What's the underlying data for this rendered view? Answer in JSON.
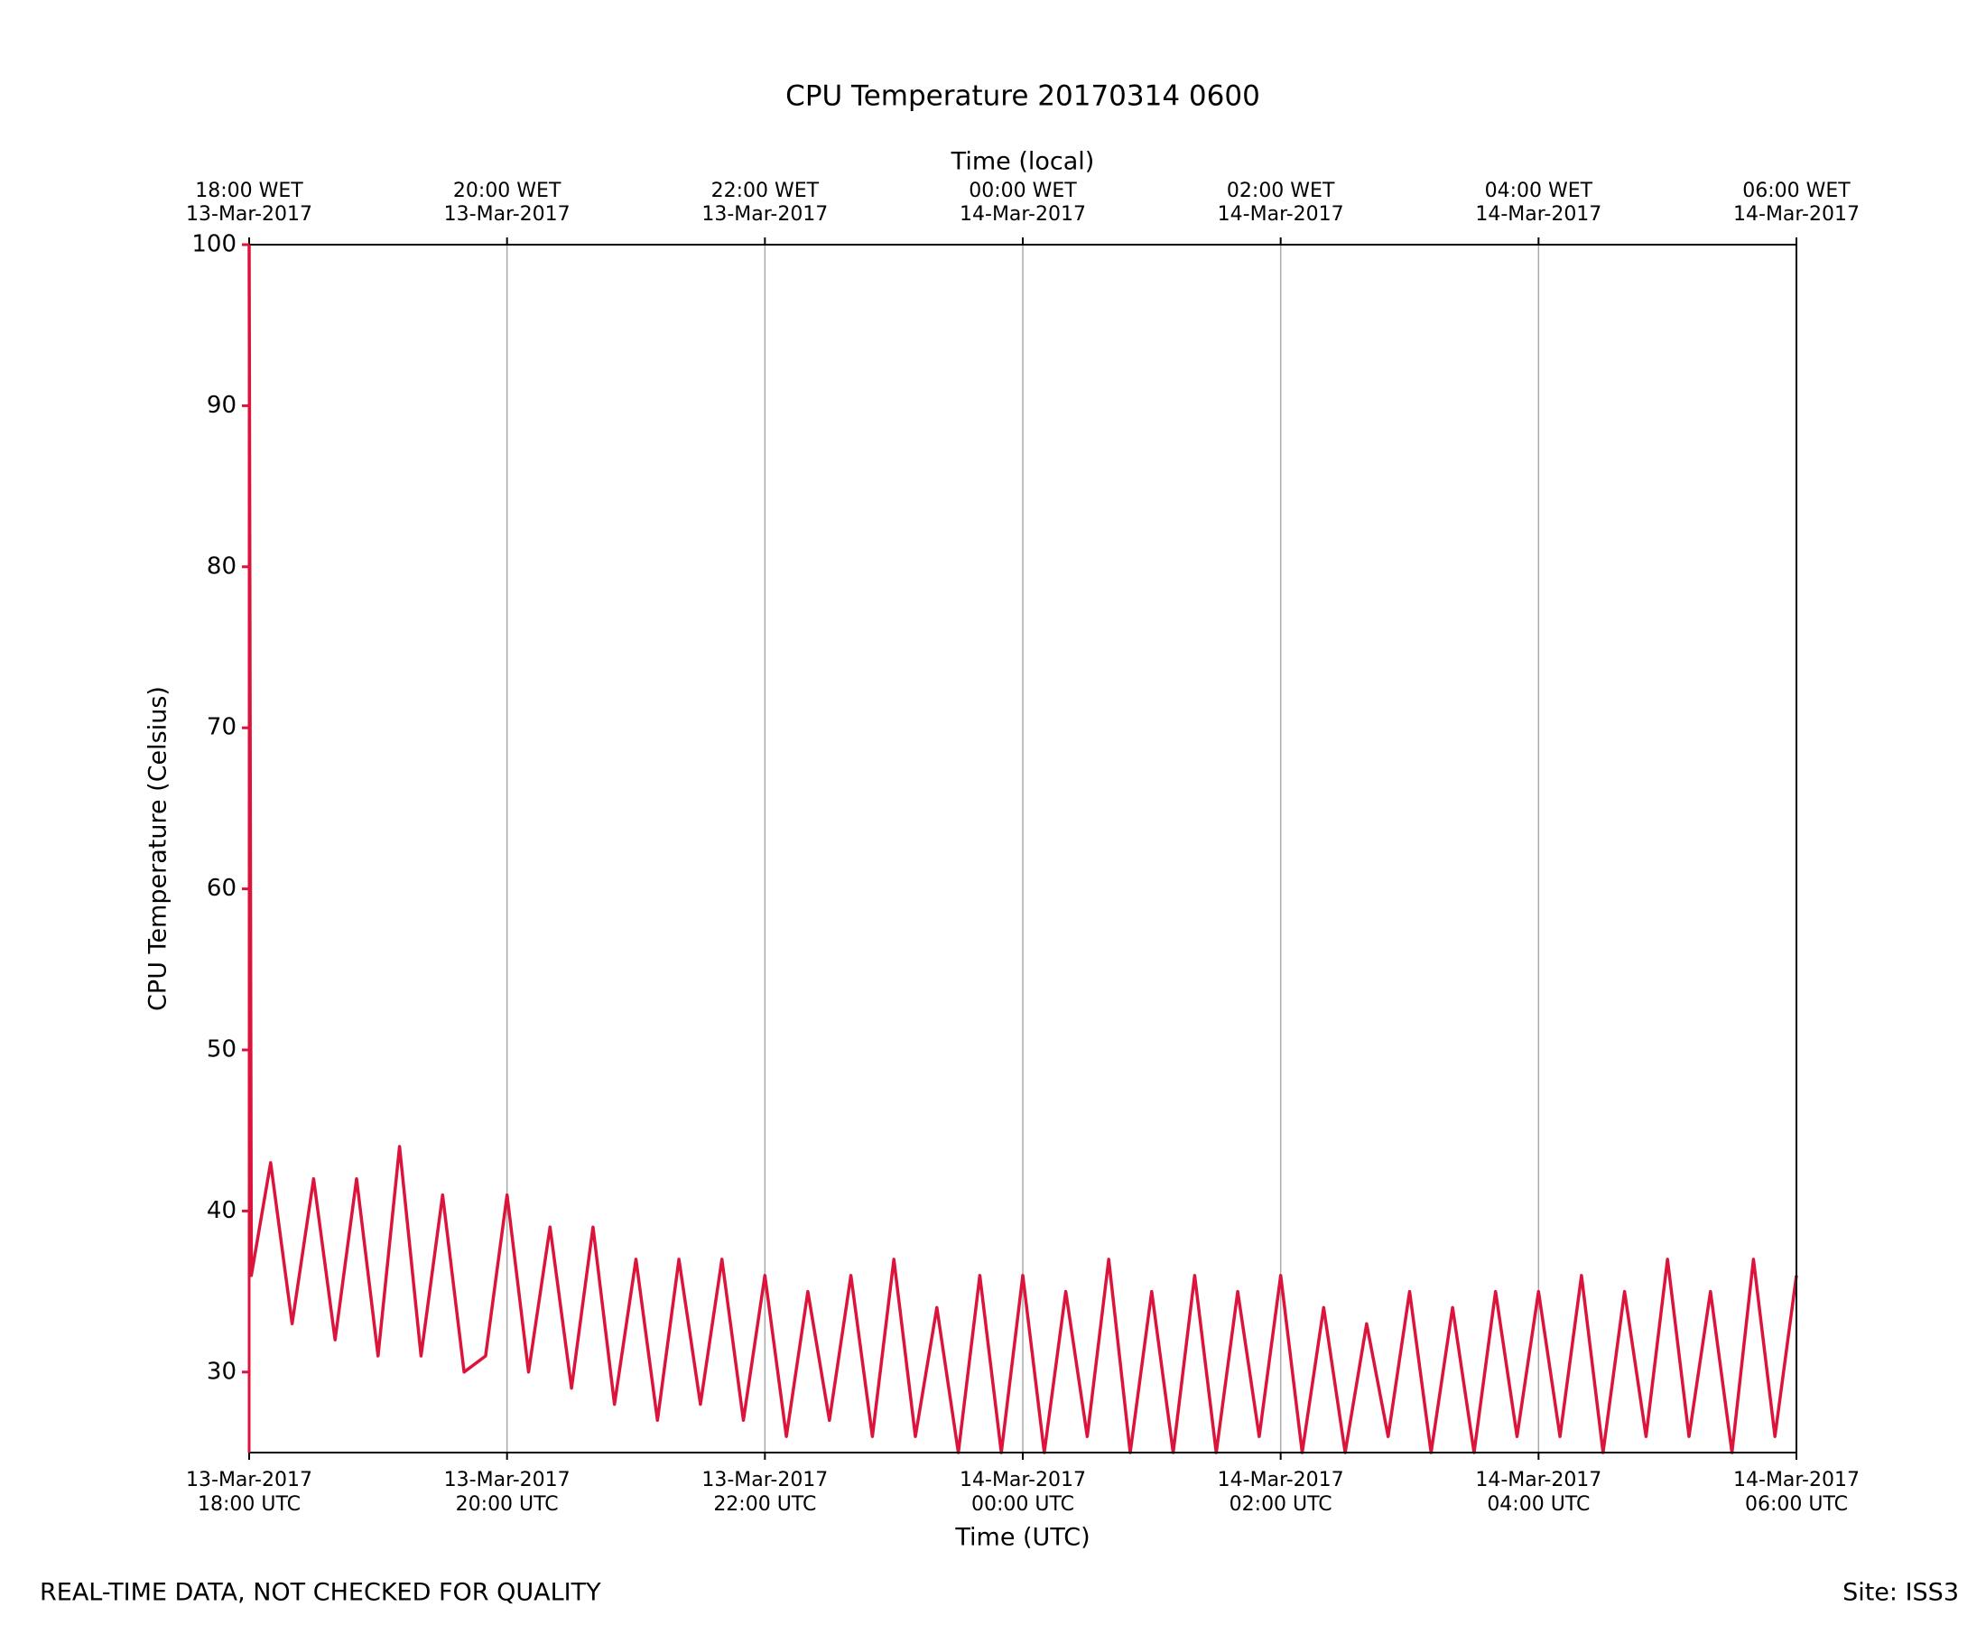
{
  "chart_data": {
    "type": "line",
    "title": "CPU Temperature 20170314 0600",
    "xlabel": "Time (UTC)",
    "x2label": "Time (local)",
    "ylabel": "CPU Temperature (Celsius)",
    "footer_left": "REAL-TIME DATA, NOT CHECKED FOR QUALITY",
    "footer_right": "Site: ISS3",
    "x": [
      "2017-03-13T18:00Z",
      "2017-03-13T18:01Z",
      "2017-03-13T18:10Z",
      "2017-03-13T18:20Z",
      "2017-03-13T18:30Z",
      "2017-03-13T18:40Z",
      "2017-03-13T18:50Z",
      "2017-03-13T19:00Z",
      "2017-03-13T19:10Z",
      "2017-03-13T19:20Z",
      "2017-03-13T19:30Z",
      "2017-03-13T19:40Z",
      "2017-03-13T19:50Z",
      "2017-03-13T20:00Z",
      "2017-03-13T20:10Z",
      "2017-03-13T20:20Z",
      "2017-03-13T20:30Z",
      "2017-03-13T20:40Z",
      "2017-03-13T20:50Z",
      "2017-03-13T21:00Z",
      "2017-03-13T21:10Z",
      "2017-03-13T21:20Z",
      "2017-03-13T21:30Z",
      "2017-03-13T21:40Z",
      "2017-03-13T21:50Z",
      "2017-03-13T22:00Z",
      "2017-03-13T22:10Z",
      "2017-03-13T22:20Z",
      "2017-03-13T22:30Z",
      "2017-03-13T22:40Z",
      "2017-03-13T22:50Z",
      "2017-03-13T23:00Z",
      "2017-03-13T23:10Z",
      "2017-03-13T23:20Z",
      "2017-03-13T23:30Z",
      "2017-03-13T23:40Z",
      "2017-03-13T23:50Z",
      "2017-03-14T00:00Z",
      "2017-03-14T00:10Z",
      "2017-03-14T00:20Z",
      "2017-03-14T00:30Z",
      "2017-03-14T00:40Z",
      "2017-03-14T00:50Z",
      "2017-03-14T01:00Z",
      "2017-03-14T01:10Z",
      "2017-03-14T01:20Z",
      "2017-03-14T01:30Z",
      "2017-03-14T01:40Z",
      "2017-03-14T01:50Z",
      "2017-03-14T02:00Z",
      "2017-03-14T02:10Z",
      "2017-03-14T02:20Z",
      "2017-03-14T02:30Z",
      "2017-03-14T02:40Z",
      "2017-03-14T02:50Z",
      "2017-03-14T03:00Z",
      "2017-03-14T03:10Z",
      "2017-03-14T03:20Z",
      "2017-03-14T03:30Z",
      "2017-03-14T03:40Z",
      "2017-03-14T03:50Z",
      "2017-03-14T04:00Z",
      "2017-03-14T04:10Z",
      "2017-03-14T04:20Z",
      "2017-03-14T04:30Z",
      "2017-03-14T04:40Z",
      "2017-03-14T04:50Z",
      "2017-03-14T05:00Z",
      "2017-03-14T05:10Z",
      "2017-03-14T05:20Z",
      "2017-03-14T05:30Z",
      "2017-03-14T05:40Z",
      "2017-03-14T05:50Z",
      "2017-03-14T06:00Z"
    ],
    "series": [
      {
        "name": "CPU Temperature",
        "color": "#dc143c",
        "values": [
          100,
          36,
          43,
          33,
          42,
          32,
          42,
          31,
          44,
          31,
          41,
          30,
          31,
          41,
          30,
          39,
          29,
          39,
          28,
          37,
          27,
          37,
          28,
          37,
          27,
          36,
          26,
          35,
          27,
          36,
          26,
          37,
          26,
          34,
          25,
          36,
          25,
          36,
          25,
          35,
          26,
          37,
          25,
          35,
          25,
          36,
          25,
          35,
          26,
          36,
          25,
          34,
          25,
          33,
          26,
          35,
          25,
          34,
          25,
          35,
          26,
          35,
          26,
          36,
          25,
          35,
          26,
          37,
          26,
          35,
          25,
          37,
          26,
          36
        ]
      }
    ],
    "xlim": [
      "2017-03-13T18:00Z",
      "2017-03-14T06:00Z"
    ],
    "ylim": [
      25,
      100
    ],
    "yticks": [
      30,
      40,
      50,
      60,
      70,
      80,
      90,
      100
    ],
    "xticks": [
      {
        "value": "2017-03-13T18:00Z",
        "label": [
          "13-Mar-2017",
          "18:00 UTC"
        ]
      },
      {
        "value": "2017-03-13T20:00Z",
        "label": [
          "13-Mar-2017",
          "20:00 UTC"
        ]
      },
      {
        "value": "2017-03-13T22:00Z",
        "label": [
          "13-Mar-2017",
          "22:00 UTC"
        ]
      },
      {
        "value": "2017-03-14T00:00Z",
        "label": [
          "14-Mar-2017",
          "00:00 UTC"
        ]
      },
      {
        "value": "2017-03-14T02:00Z",
        "label": [
          "14-Mar-2017",
          "02:00 UTC"
        ]
      },
      {
        "value": "2017-03-14T04:00Z",
        "label": [
          "14-Mar-2017",
          "04:00 UTC"
        ]
      },
      {
        "value": "2017-03-14T06:00Z",
        "label": [
          "14-Mar-2017",
          "06:00 UTC"
        ]
      }
    ],
    "x2ticks": [
      {
        "value": "2017-03-13T18:00Z",
        "label": [
          "18:00 WET",
          "13-Mar-2017"
        ]
      },
      {
        "value": "2017-03-13T20:00Z",
        "label": [
          "20:00 WET",
          "13-Mar-2017"
        ]
      },
      {
        "value": "2017-03-13T22:00Z",
        "label": [
          "22:00 WET",
          "13-Mar-2017"
        ]
      },
      {
        "value": "2017-03-14T00:00Z",
        "label": [
          "00:00 WET",
          "14-Mar-2017"
        ]
      },
      {
        "value": "2017-03-14T02:00Z",
        "label": [
          "02:00 WET",
          "14-Mar-2017"
        ]
      },
      {
        "value": "2017-03-14T04:00Z",
        "label": [
          "04:00 WET",
          "14-Mar-2017"
        ]
      },
      {
        "value": "2017-03-14T06:00Z",
        "label": [
          "06:00 WET",
          "14-Mar-2017"
        ]
      }
    ],
    "grid": "x",
    "axis_color": "#dc143c"
  }
}
